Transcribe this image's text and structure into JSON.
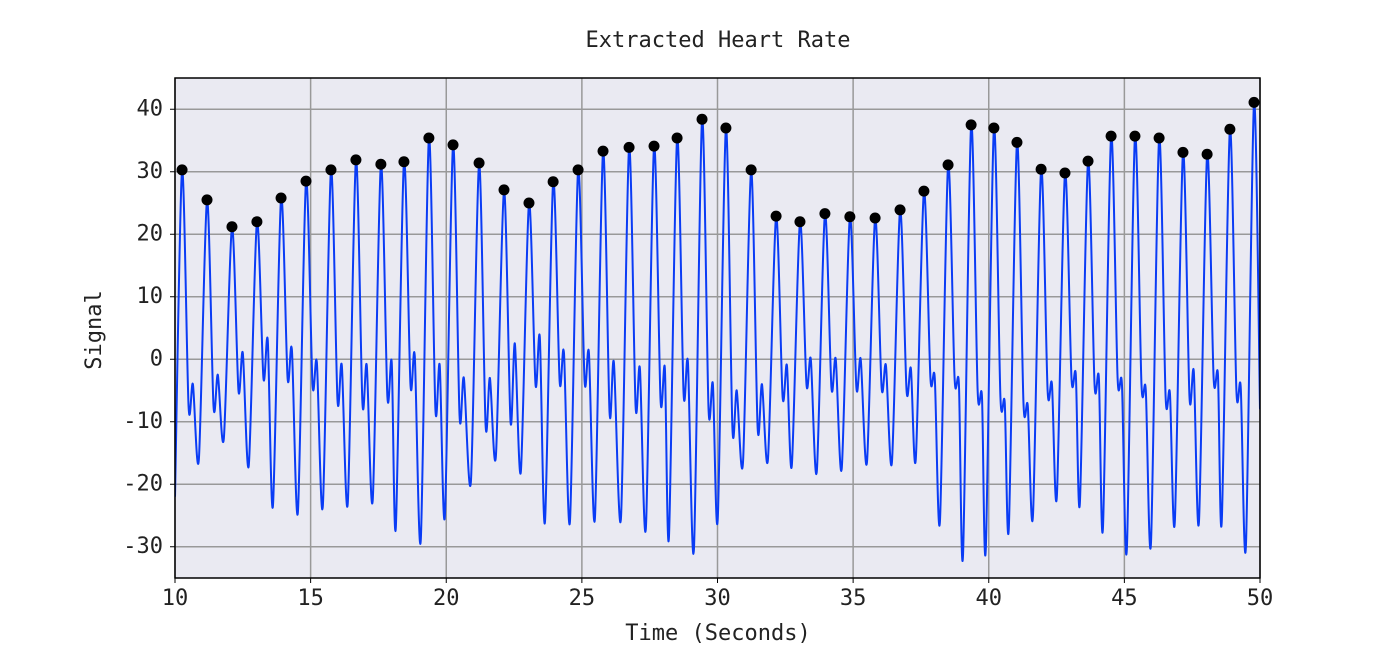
{
  "chart_data": {
    "type": "line",
    "title": "Extracted Heart Rate",
    "xlabel": "Time (Seconds)",
    "ylabel": "Signal",
    "xlim": [
      10,
      50
    ],
    "ylim": [
      -35,
      45
    ],
    "xticks": [
      10,
      15,
      20,
      25,
      30,
      35,
      40,
      45,
      50
    ],
    "yticks": [
      -30,
      -20,
      -10,
      0,
      10,
      20,
      30,
      40
    ],
    "grid": true,
    "series": [
      {
        "type": "line",
        "color": "#0a3cf5",
        "x": [
          10.0,
          10.26,
          10.5,
          10.66,
          10.88,
          11.18,
          11.42,
          11.58,
          11.8,
          12.1,
          12.34,
          12.5,
          12.72,
          13.02,
          13.26,
          13.42,
          13.61,
          13.91,
          14.15,
          14.31,
          14.53,
          14.83,
          15.07,
          15.23,
          15.45,
          15.75,
          15.99,
          16.15,
          16.37,
          16.67,
          16.91,
          17.07,
          17.29,
          17.59,
          17.83,
          17.99,
          18.14,
          18.44,
          18.68,
          18.84,
          19.06,
          19.36,
          19.6,
          19.76,
          19.95,
          20.25,
          20.49,
          20.65,
          20.91,
          21.21,
          21.45,
          21.61,
          21.83,
          22.13,
          22.37,
          22.53,
          22.75,
          23.05,
          23.29,
          23.45,
          23.64,
          23.94,
          24.18,
          24.34,
          24.56,
          24.86,
          25.1,
          25.26,
          25.48,
          25.78,
          26.02,
          26.18,
          26.44,
          26.74,
          26.98,
          27.14,
          27.36,
          27.66,
          27.9,
          28.06,
          28.21,
          28.51,
          28.75,
          28.91,
          29.13,
          29.43,
          29.67,
          29.83,
          30.01,
          30.31,
          30.55,
          30.71,
          30.94,
          31.24,
          31.48,
          31.64,
          31.86,
          32.16,
          32.4,
          32.56,
          32.74,
          33.04,
          33.28,
          33.44,
          33.66,
          33.96,
          34.2,
          34.36,
          34.58,
          34.88,
          35.12,
          35.28,
          35.51,
          35.81,
          36.05,
          36.21,
          36.43,
          36.73,
          36.97,
          37.13,
          37.31,
          37.61,
          37.85,
          38.01,
          38.2,
          38.5,
          38.74,
          38.9,
          39.05,
          39.35,
          39.59,
          39.75,
          39.89,
          40.19,
          40.43,
          40.59,
          40.74,
          41.04,
          41.28,
          41.44,
          41.63,
          41.93,
          42.17,
          42.33,
          42.51,
          42.81,
          43.05,
          43.21,
          43.36,
          43.66,
          43.9,
          44.06,
          44.21,
          44.51,
          44.75,
          44.91,
          45.09,
          45.39,
          45.63,
          45.79,
          45.98,
          46.28,
          46.52,
          46.68,
          46.86,
          47.16,
          47.4,
          47.56,
          47.75,
          48.05,
          48.29,
          48.45,
          48.59,
          48.89,
          49.13,
          49.29,
          49.48,
          49.78,
          50.0
        ],
        "values": [
          -22,
          30.3,
          -7.5,
          -4,
          -16,
          25.5,
          -7.5,
          -2.5,
          -12.7,
          21.2,
          -5,
          1,
          -17,
          22.0,
          -3,
          3,
          -23.5,
          25.8,
          -3,
          1.5,
          -24.5,
          28.5,
          -4,
          -0.5,
          -23.5,
          30.3,
          -6.5,
          -1,
          -23,
          31.9,
          -7,
          -1,
          -22.5,
          31.2,
          -6,
          -0.5,
          -27,
          31.6,
          -4,
          0.5,
          -29,
          35.4,
          -8,
          -1,
          -25,
          34.3,
          -9,
          -3,
          -19.5,
          31.4,
          -10.5,
          -3,
          -15.5,
          27.1,
          -10,
          2.5,
          -18,
          25.0,
          -4,
          3.5,
          -26,
          28.4,
          -3.5,
          1,
          -26,
          30.3,
          -3.5,
          1,
          -25.5,
          33.3,
          -8.5,
          -0.5,
          -25.5,
          33.9,
          -7.5,
          -1.5,
          -27,
          34.1,
          -6.5,
          -1.5,
          -28.5,
          35.4,
          -5.5,
          -0.5,
          -30.5,
          38.4,
          -8,
          -4,
          -25.5,
          37.0,
          -11,
          -5,
          -16.5,
          30.3,
          -11,
          -4,
          -16,
          22.9,
          -6,
          -1,
          -17,
          22.0,
          -4,
          0,
          -18,
          23.3,
          -4.5,
          0,
          -17.5,
          22.8,
          -4.5,
          0,
          -16.5,
          22.6,
          -4.5,
          -1,
          -16.5,
          23.9,
          -5,
          -1.5,
          -16,
          26.9,
          -3,
          -3,
          -26,
          31.1,
          -3,
          -4,
          -31.5,
          37.5,
          -5,
          -6,
          -30.5,
          37.0,
          -6,
          -7,
          -27,
          34.7,
          -7,
          -7.5,
          -25,
          30.4,
          -5,
          -4,
          -22,
          29.8,
          -3,
          -2.5,
          -23,
          31.7,
          -4,
          -3,
          -27,
          35.7,
          -3,
          -4,
          -30.5,
          35.7,
          -4,
          -5,
          -29.5,
          35.4,
          -6,
          -5.5,
          -26,
          33.1,
          -6,
          -2,
          -26,
          32.8,
          -3,
          -2.5,
          -26,
          36.8,
          -5,
          -4.5,
          -30,
          41.1,
          -8
        ]
      },
      {
        "type": "scatter",
        "color": "#000000",
        "x": [
          10.26,
          11.18,
          12.1,
          13.02,
          13.91,
          14.83,
          15.75,
          16.67,
          17.59,
          18.44,
          19.36,
          20.25,
          21.21,
          22.13,
          23.05,
          23.94,
          24.86,
          25.78,
          26.74,
          27.66,
          28.51,
          29.43,
          30.31,
          31.24,
          32.16,
          33.04,
          33.96,
          34.88,
          35.81,
          36.73,
          37.61,
          38.5,
          39.35,
          40.19,
          41.04,
          41.93,
          42.81,
          43.66,
          44.51,
          45.39,
          46.28,
          47.16,
          48.05,
          48.89,
          49.78
        ],
        "values": [
          30.3,
          25.5,
          21.2,
          22.0,
          25.8,
          28.5,
          30.3,
          31.9,
          31.2,
          31.6,
          35.4,
          34.3,
          31.4,
          27.1,
          25.0,
          28.4,
          30.3,
          33.3,
          33.9,
          34.1,
          35.4,
          38.4,
          37.0,
          30.3,
          22.9,
          22.0,
          23.3,
          22.8,
          22.6,
          23.9,
          26.9,
          31.1,
          37.5,
          37.0,
          34.7,
          30.4,
          29.8,
          31.7,
          35.7,
          35.7,
          35.4,
          33.1,
          32.8,
          36.8,
          41.1
        ]
      }
    ]
  }
}
